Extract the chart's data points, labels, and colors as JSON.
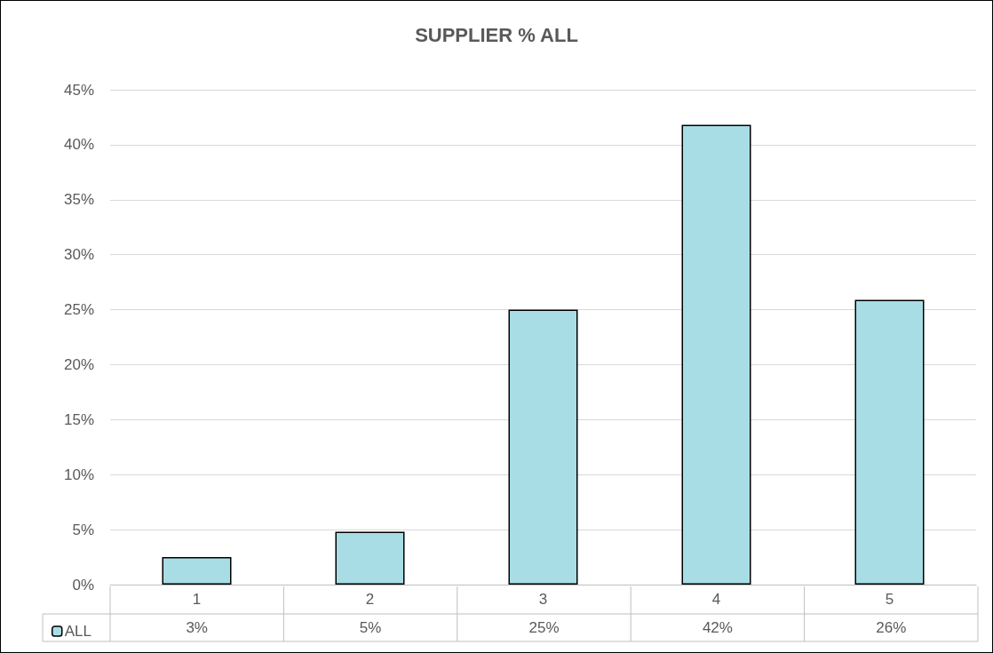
{
  "chart_data": {
    "type": "bar",
    "title": "SUPPLIER % ALL",
    "categories": [
      "1",
      "2",
      "3",
      "4",
      "5"
    ],
    "series": [
      {
        "name": "ALL",
        "color": "#a8dde6",
        "values": [
          2.5,
          4.8,
          25,
          41.8,
          25.9
        ],
        "value_labels": [
          "3%",
          "5%",
          "25%",
          "42%",
          "26%"
        ]
      }
    ],
    "ylim": [
      0,
      45
    ],
    "yticks": [
      {
        "value": 0,
        "label": "0%"
      },
      {
        "value": 5,
        "label": "5%"
      },
      {
        "value": 10,
        "label": "10%"
      },
      {
        "value": 15,
        "label": "15%"
      },
      {
        "value": 20,
        "label": "20%"
      },
      {
        "value": 25,
        "label": "25%"
      },
      {
        "value": 30,
        "label": "30%"
      },
      {
        "value": 35,
        "label": "35%"
      },
      {
        "value": 40,
        "label": "40%"
      },
      {
        "value": 45,
        "label": "45%"
      }
    ],
    "grid": "y",
    "legend": "bottom left"
  }
}
